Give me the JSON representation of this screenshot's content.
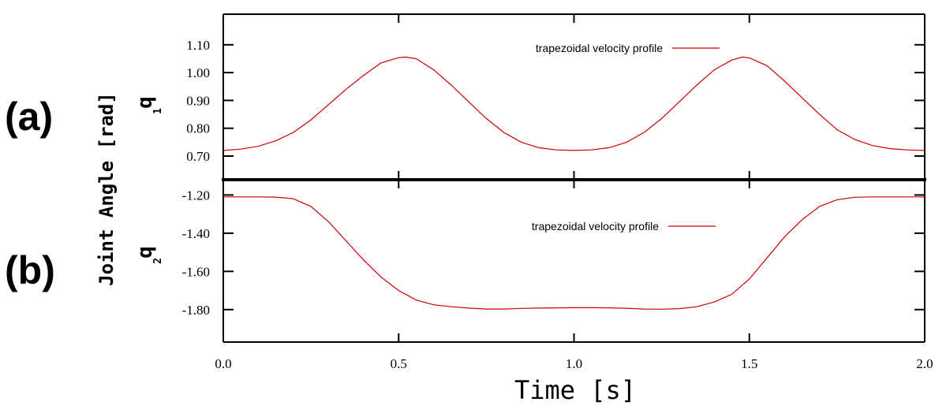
{
  "chart_data": {
    "type": "line",
    "ylabel": "Joint Angle [rad]",
    "xlabel": "Time [s]",
    "xlim": [
      0.0,
      2.0
    ],
    "x_ticks": [
      "0.0",
      "0.5",
      "1.0",
      "1.5",
      "2.0"
    ],
    "x_tick_values": [
      0.0,
      0.5,
      1.0,
      1.5,
      2.0
    ],
    "series_color": "#cc0000",
    "panels": [
      {
        "panel_label": "(a)",
        "q_letter": "q",
        "q_subscript": "1",
        "ylim": [
          0.615,
          1.21
        ],
        "y_ticks": [
          "1.10",
          "1.00",
          "0.90",
          "0.80",
          "0.70"
        ],
        "y_tick_values": [
          1.1,
          1.0,
          0.9,
          0.8,
          0.7
        ],
        "legend": "trapezoidal velocity profile",
        "series": [
          {
            "name": "trapezoidal velocity profile",
            "x": [
              0.0,
              0.05,
              0.1,
              0.15,
              0.2,
              0.25,
              0.3,
              0.35,
              0.4,
              0.45,
              0.5,
              0.52,
              0.55,
              0.6,
              0.65,
              0.7,
              0.75,
              0.8,
              0.85,
              0.9,
              0.95,
              1.0,
              1.05,
              1.1,
              1.15,
              1.2,
              1.25,
              1.3,
              1.35,
              1.4,
              1.45,
              1.48,
              1.5,
              1.55,
              1.6,
              1.65,
              1.7,
              1.75,
              1.8,
              1.85,
              1.9,
              1.95,
              2.0
            ],
            "y": [
              0.72,
              0.725,
              0.735,
              0.755,
              0.785,
              0.83,
              0.885,
              0.94,
              0.99,
              1.035,
              1.054,
              1.056,
              1.05,
              1.01,
              0.955,
              0.895,
              0.835,
              0.785,
              0.75,
              0.73,
              0.722,
              0.72,
              0.722,
              0.73,
              0.75,
              0.785,
              0.835,
              0.895,
              0.955,
              1.01,
              1.045,
              1.056,
              1.053,
              1.025,
              0.97,
              0.91,
              0.85,
              0.795,
              0.76,
              0.738,
              0.727,
              0.722,
              0.72
            ]
          }
        ]
      },
      {
        "panel_label": "(b)",
        "q_letter": "q",
        "q_subscript": "2",
        "ylim": [
          -1.97,
          -1.12
        ],
        "y_ticks": [
          "-1.20",
          "-1.40",
          "-1.60",
          "-1.80"
        ],
        "y_tick_values": [
          -1.2,
          -1.4,
          -1.6,
          -1.8
        ],
        "legend": "trapezoidal velocity profile",
        "series": [
          {
            "name": "trapezoidal velocity profile",
            "x": [
              0.0,
              0.05,
              0.1,
              0.15,
              0.2,
              0.25,
              0.3,
              0.35,
              0.4,
              0.45,
              0.5,
              0.55,
              0.6,
              0.65,
              0.7,
              0.75,
              0.8,
              0.85,
              0.9,
              0.95,
              1.0,
              1.05,
              1.1,
              1.15,
              1.2,
              1.25,
              1.3,
              1.35,
              1.4,
              1.45,
              1.5,
              1.55,
              1.6,
              1.65,
              1.7,
              1.75,
              1.8,
              1.85,
              1.9,
              1.95,
              2.0
            ],
            "y": [
              -1.21,
              -1.21,
              -1.21,
              -1.211,
              -1.22,
              -1.26,
              -1.34,
              -1.44,
              -1.54,
              -1.63,
              -1.7,
              -1.75,
              -1.775,
              -1.785,
              -1.792,
              -1.797,
              -1.797,
              -1.794,
              -1.792,
              -1.791,
              -1.79,
              -1.79,
              -1.791,
              -1.793,
              -1.797,
              -1.798,
              -1.795,
              -1.785,
              -1.76,
              -1.72,
              -1.64,
              -1.53,
              -1.42,
              -1.33,
              -1.26,
              -1.225,
              -1.212,
              -1.21,
              -1.21,
              -1.21,
              -1.21
            ]
          }
        ]
      }
    ]
  }
}
